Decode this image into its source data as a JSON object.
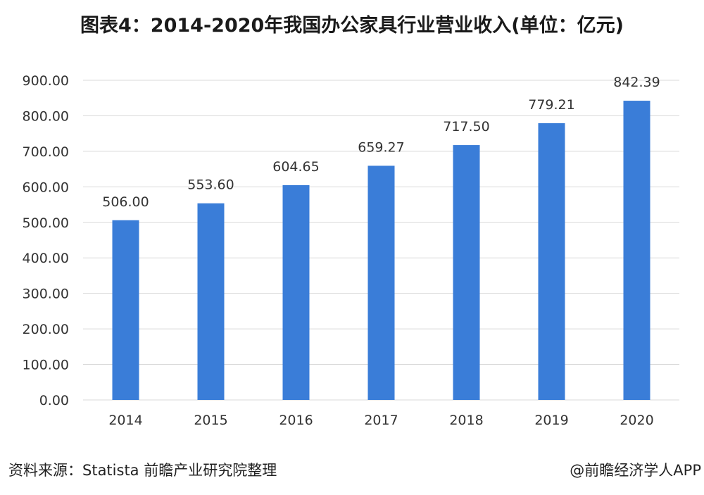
{
  "header": {
    "title": "图表4：2014-2020年我国办公家具行业营业收入(单位：亿元)"
  },
  "footer": {
    "source": "资料来源：Statista 前瞻产业研究院整理",
    "credit": "@前瞻经济学人APP"
  },
  "colors": {
    "bar": "#3a7dd8",
    "grid": "#d9d9d9",
    "text": "#333333"
  },
  "chart_data": {
    "type": "bar",
    "title": "图表4：2014-2020年我国办公家具行业营业收入(单位：亿元)",
    "categories": [
      "2014",
      "2015",
      "2016",
      "2017",
      "2018",
      "2019",
      "2020"
    ],
    "values": [
      506.0,
      553.6,
      604.65,
      659.27,
      717.5,
      779.21,
      842.39
    ],
    "value_labels": [
      "506.00",
      "553.60",
      "604.65",
      "659.27",
      "717.50",
      "779.21",
      "842.39"
    ],
    "yticks": [
      "0.00",
      "100.00",
      "200.00",
      "300.00",
      "400.00",
      "500.00",
      "600.00",
      "700.00",
      "800.00",
      "900.00"
    ],
    "ylim": [
      0,
      900
    ],
    "xlabel": "",
    "ylabel": "",
    "grid": true,
    "legend": "none"
  }
}
